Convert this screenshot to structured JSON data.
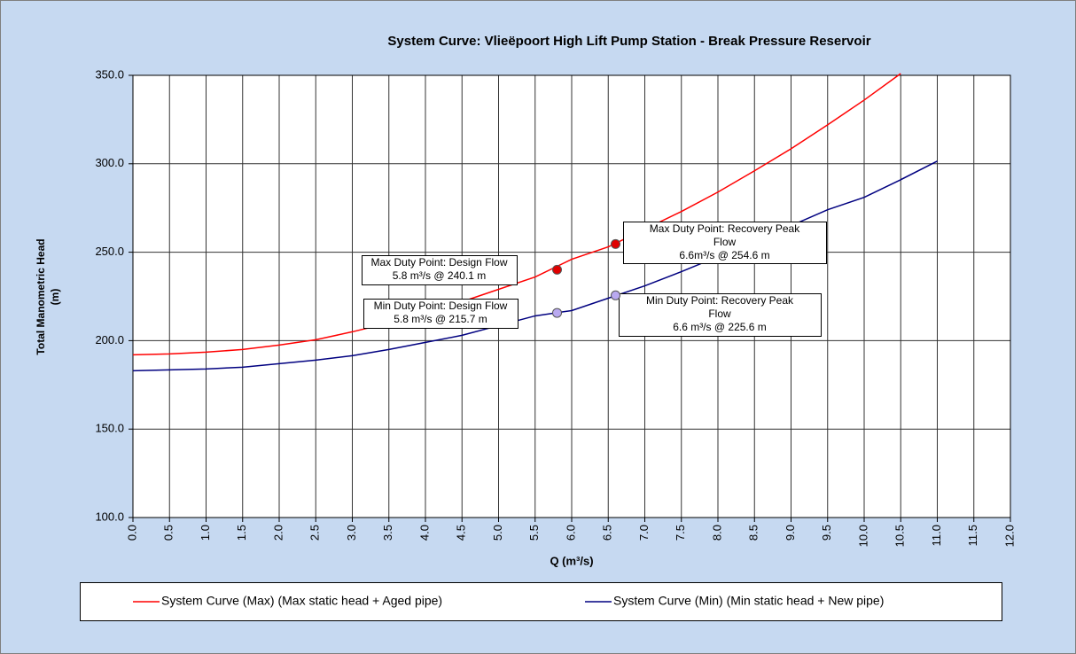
{
  "chart_data": {
    "type": "line",
    "title": "System Curve: Vlieëpoort High Lift Pump Station - Break Pressure Reservoir",
    "xlabel": "Q (m³/s)",
    "ylabel": [
      "Total Manometric Head",
      "(m)"
    ],
    "xlim": [
      0,
      12
    ],
    "ylim": [
      100,
      350
    ],
    "xticks": [
      {
        "value": 0,
        "label": "0.0"
      },
      0.5,
      {
        "value": 1,
        "label": "1.0"
      },
      1.5,
      {
        "value": 2,
        "label": "2.0"
      },
      2.5,
      {
        "value": 3,
        "label": "3.0"
      },
      3.5,
      {
        "value": 4,
        "label": "4.0"
      },
      4.5,
      {
        "value": 5,
        "label": "5.0"
      },
      5.5,
      {
        "value": 6,
        "label": "6.0"
      },
      6.5,
      {
        "value": 7,
        "label": "7.0"
      },
      7.5,
      {
        "value": 8,
        "label": "8.0"
      },
      8.5,
      {
        "value": 9,
        "label": "9.0"
      },
      9.5,
      {
        "value": 10,
        "label": "10.0"
      },
      10.5,
      {
        "value": 11,
        "label": "11.0"
      },
      11.5,
      {
        "value": 12,
        "label": "12.0"
      }
    ],
    "yticks": [
      {
        "value": 100,
        "label": "100.0"
      },
      {
        "value": 150,
        "label": "150.0"
      },
      {
        "value": 200,
        "label": "200.0"
      },
      {
        "value": 250,
        "label": "250.0"
      },
      {
        "value": 300,
        "label": "300.0"
      },
      {
        "value": 350,
        "label": "350.0"
      }
    ],
    "grid": true,
    "series": [
      {
        "name": "System Curve (Max) (Max static head + Aged pipe)",
        "color": "#ff0000",
        "x": [
          0,
          0.5,
          1,
          1.5,
          2,
          2.5,
          3,
          3.5,
          4,
          4.5,
          5,
          5.5,
          6,
          6.5,
          7,
          7.5,
          8,
          8.5,
          9,
          9.5,
          10,
          10.5
        ],
        "values": [
          192,
          192.5,
          193.5,
          195,
          197.5,
          200.5,
          205,
          210,
          215.5,
          222,
          229,
          236,
          246,
          253,
          263,
          273,
          284,
          296,
          308.5,
          322,
          336,
          351
        ]
      },
      {
        "name": "System Curve (Min) (Min static head + New pipe)",
        "color": "#000080",
        "x": [
          0,
          0.5,
          1,
          1.5,
          2,
          2.5,
          3,
          3.5,
          4,
          4.5,
          5,
          5.5,
          6,
          6.5,
          7,
          7.5,
          8,
          8.5,
          9,
          9.5,
          10,
          10.5,
          11
        ],
        "values": [
          183,
          183.5,
          184,
          185,
          187,
          189,
          191.5,
          195,
          199,
          203,
          208.5,
          214,
          217,
          224,
          231,
          239,
          247.5,
          256,
          265,
          274,
          281,
          291,
          301.5
        ]
      }
    ],
    "annotations": [
      {
        "x": 5.8,
        "y": 240.1,
        "color": "#e00000",
        "lines": [
          "Max Duty Point: Design Flow",
          "5.8 m³/s @ 240.1 m"
        ]
      },
      {
        "x": 6.6,
        "y": 254.6,
        "color": "#e00000",
        "lines": [
          "Max Duty Point: Recovery Peak",
          "Flow",
          "6.6m³/s @ 254.6 m"
        ]
      },
      {
        "x": 5.8,
        "y": 215.7,
        "color": "#b9a9f0",
        "lines": [
          "Min Duty Point: Design Flow",
          "5.8 m³/s @ 215.7 m"
        ]
      },
      {
        "x": 6.6,
        "y": 225.6,
        "color": "#b9a9f0",
        "lines": [
          "Min Duty Point: Recovery Peak",
          "Flow",
          "6.6 m³/s @ 225.6 m"
        ]
      }
    ]
  }
}
